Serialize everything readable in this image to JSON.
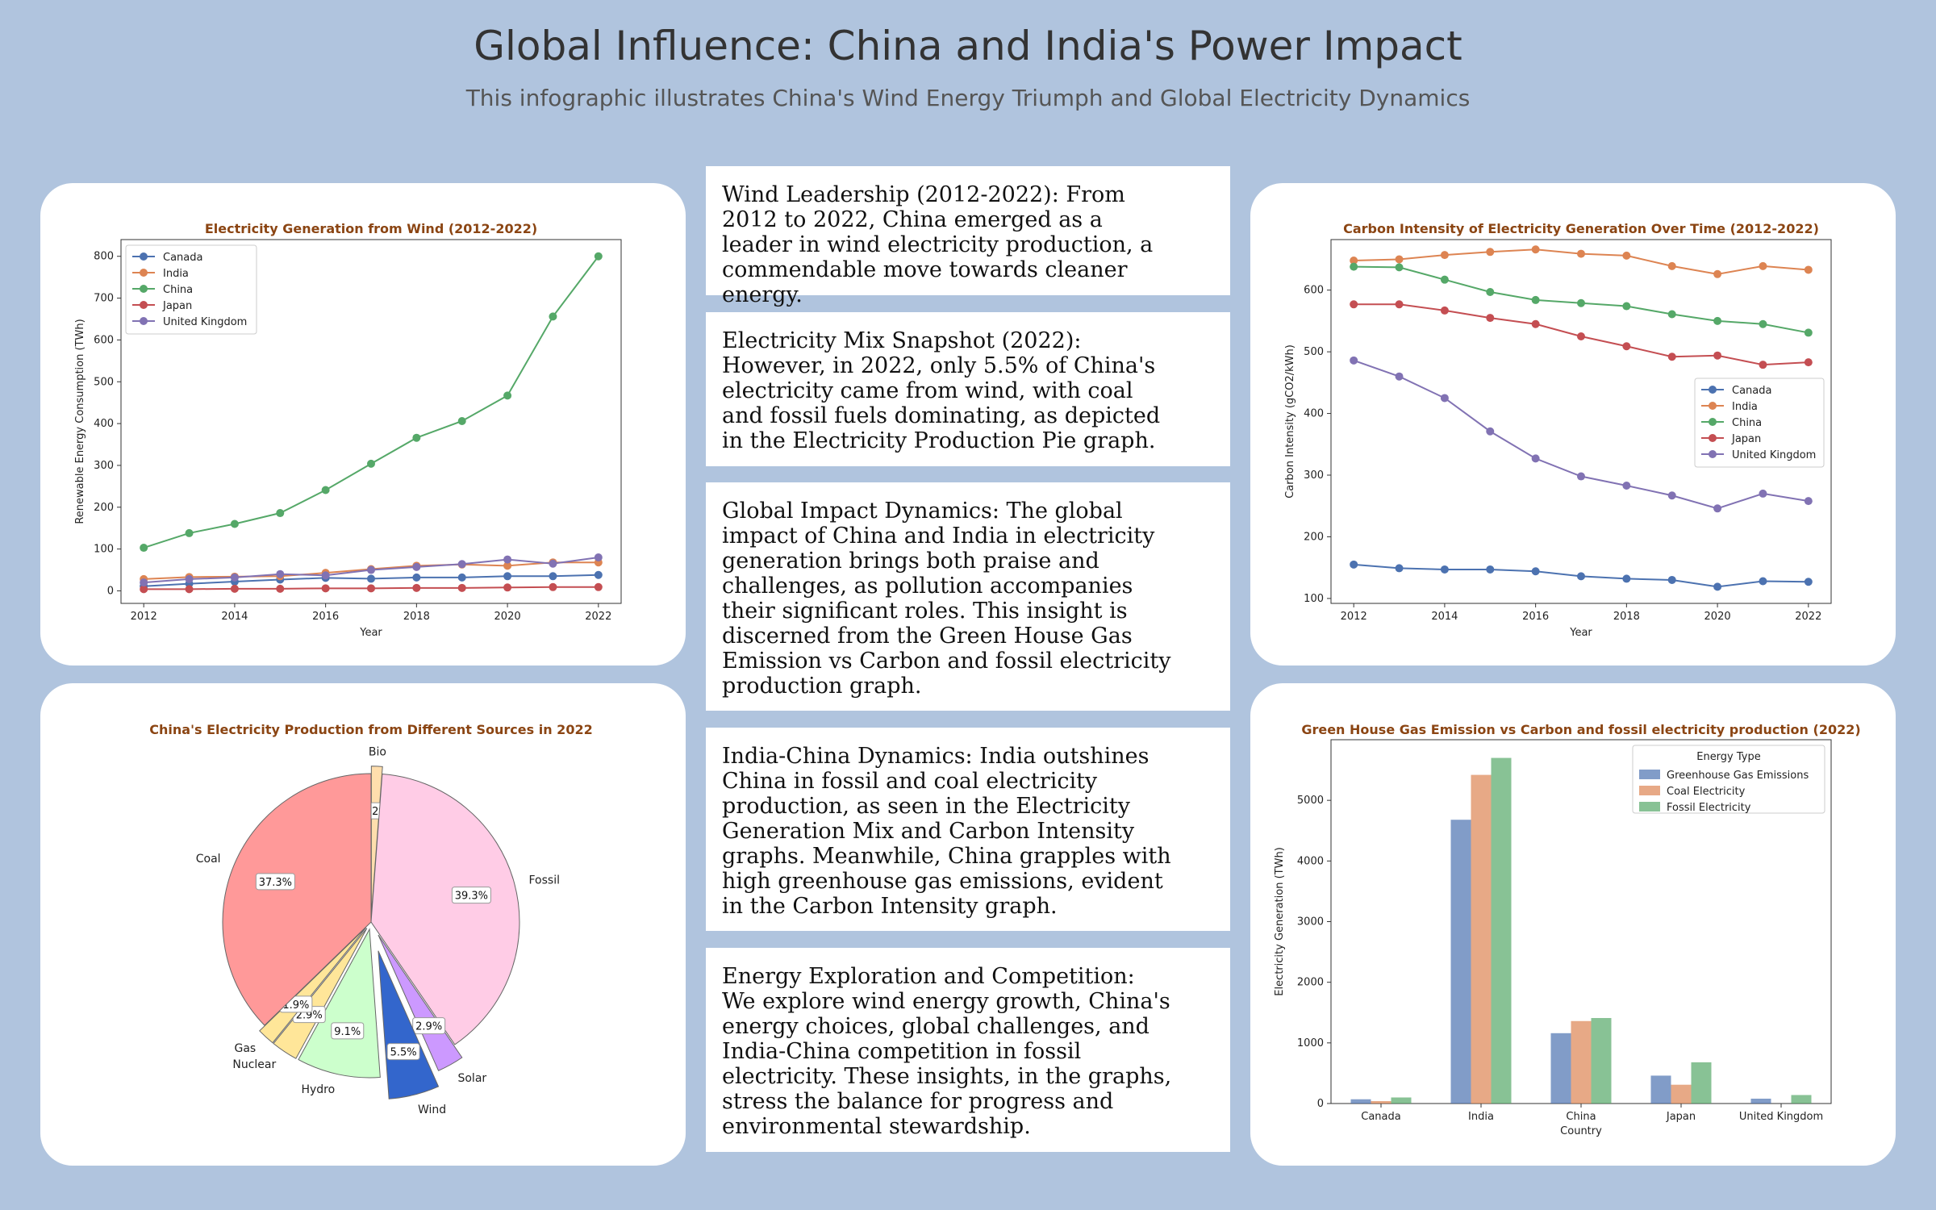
{
  "header": {
    "title": "Global Influence: China and India's Power Impact",
    "subtitle": "This infographic illustrates China's Wind Energy Triumph and Global Electricity Dynamics"
  },
  "insights": [
    "Wind Leadership (2012-2022): From 2012 to 2022, China emerged as a leader in wind electricity production, a commendable move towards cleaner energy.",
    "Electricity Mix Snapshot (2022): However, in 2022, only 5.5% of China's electricity came from wind, with coal and fossil fuels dominating, as depicted in the Electricity Production Pie graph.",
    "Global Impact Dynamics: The global impact of China and India in electricity generation brings both praise and challenges, as pollution accompanies their significant roles. This insight is discerned from the Green House Gas Emission vs Carbon and fossil electricity production graph.",
    "India-China Dynamics: India outshines China in fossil and coal electricity production, as seen in the Electricity Generation Mix and Carbon Intensity graphs. Meanwhile, China grapples with high greenhouse gas emissions, evident in the Carbon Intensity graph.",
    "Energy Exploration and Competition: We explore wind energy growth, China's energy choices, global challenges, and India-China competition in fossil electricity. These insights, in the graphs, stress the balance for progress and environmental stewardship."
  ],
  "colors": {
    "background": "#b0c4de",
    "title_text": "#8b4513",
    "Canada": "#4c72b0",
    "India": "#dd8452",
    "China": "#55a868",
    "Japan": "#c44e52",
    "United Kingdom": "#8172b3"
  },
  "chart_data": [
    {
      "type": "line",
      "title": "Electricity Generation from Wind (2012-2022)",
      "xlabel": "Year",
      "ylabel": "Renewable Energy Consumption (TWh)",
      "x": [
        2012,
        2013,
        2014,
        2015,
        2016,
        2017,
        2018,
        2019,
        2020,
        2021,
        2022
      ],
      "xticks": [
        2012,
        2014,
        2016,
        2018,
        2020,
        2022
      ],
      "yticks": [
        0,
        100,
        200,
        300,
        400,
        500,
        600,
        700,
        800
      ],
      "xlim": [
        2011.5,
        2022.5
      ],
      "ylim": [
        -30,
        840
      ],
      "legend": "top-left",
      "series": [
        {
          "name": "Canada",
          "color": "#4c72b0",
          "values": [
            11,
            17,
            22,
            27,
            31,
            29,
            32,
            32,
            35,
            35,
            38
          ]
        },
        {
          "name": "India",
          "color": "#dd8452",
          "values": [
            28,
            33,
            34,
            35,
            43,
            52,
            60,
            63,
            60,
            68,
            68
          ]
        },
        {
          "name": "China",
          "color": "#55a868",
          "values": [
            103,
            138,
            160,
            186,
            241,
            304,
            366,
            406,
            467,
            656,
            800
          ]
        },
        {
          "name": "Japan",
          "color": "#c44e52",
          "values": [
            4,
            4,
            5,
            5,
            6,
            6,
            7,
            7,
            8,
            9,
            9
          ]
        },
        {
          "name": "United Kingdom",
          "color": "#8172b3",
          "values": [
            20,
            28,
            32,
            40,
            37,
            50,
            57,
            64,
            75,
            65,
            80
          ]
        }
      ]
    },
    {
      "type": "line",
      "title": "Carbon Intensity of Electricity Generation Over Time (2012-2022)",
      "xlabel": "Year",
      "ylabel": "Carbon Intensity (gCO2/kWh)",
      "x": [
        2012,
        2013,
        2014,
        2015,
        2016,
        2017,
        2018,
        2019,
        2020,
        2021,
        2022
      ],
      "xticks": [
        2012,
        2014,
        2016,
        2018,
        2020,
        2022
      ],
      "yticks": [
        100,
        200,
        300,
        400,
        500,
        600
      ],
      "xlim": [
        2011.5,
        2022.5
      ],
      "ylim": [
        92,
        682
      ],
      "legend": "center-right",
      "series": [
        {
          "name": "Canada",
          "color": "#4c72b0",
          "values": [
            155,
            149,
            147,
            147,
            144,
            136,
            132,
            130,
            119,
            128,
            127
          ]
        },
        {
          "name": "India",
          "color": "#dd8452",
          "values": [
            648,
            650,
            657,
            662,
            666,
            659,
            656,
            639,
            626,
            639,
            633
          ]
        },
        {
          "name": "China",
          "color": "#55a868",
          "values": [
            638,
            637,
            617,
            597,
            584,
            579,
            574,
            561,
            550,
            545,
            531
          ]
        },
        {
          "name": "Japan",
          "color": "#c44e52",
          "values": [
            577,
            577,
            567,
            555,
            545,
            525,
            509,
            492,
            494,
            479,
            483
          ]
        },
        {
          "name": "United Kingdom",
          "color": "#8172b3",
          "values": [
            486,
            460,
            425,
            371,
            327,
            298,
            283,
            267,
            246,
            270,
            258
          ]
        }
      ]
    },
    {
      "type": "pie",
      "title": "China's Electricity Production from Different Sources in 2022",
      "slices": [
        {
          "label": "Bio",
          "value": 1.2,
          "pct_label": "1.2%",
          "color": "#ffdead",
          "explode": 0.05
        },
        {
          "label": "Fossil",
          "value": 39.3,
          "pct_label": "39.3%",
          "color": "#ffcce6",
          "explode": 0
        },
        {
          "label": "Solar",
          "value": 2.9,
          "pct_label": "2.9%",
          "color": "#cc99ff",
          "explode": 0.1
        },
        {
          "label": "Wind",
          "value": 5.5,
          "pct_label": "5.5%",
          "color": "#3366cc",
          "explode": 0.2
        },
        {
          "label": "Hydro",
          "value": 9.1,
          "pct_label": "9.1%",
          "color": "#ccffcc",
          "explode": 0.05
        },
        {
          "label": "Nuclear",
          "value": 2.9,
          "pct_label": "2.9%",
          "color": "#ffe699",
          "explode": 0.05
        },
        {
          "label": "Gas",
          "value": 1.9,
          "pct_label": "1.9%",
          "color": "#ffe699",
          "explode": 0.05
        },
        {
          "label": "Coal",
          "value": 37.3,
          "pct_label": "37.3%",
          "color": "#ff9999",
          "explode": 0
        }
      ]
    },
    {
      "type": "bar",
      "title": "Green House Gas Emission vs Carbon and fossil electricity production (2022)",
      "xlabel": "Country",
      "ylabel": "Electricity Generation (TWh)",
      "categories": [
        "Canada",
        "India",
        "China",
        "Japan",
        "United Kingdom"
      ],
      "yticks": [
        0,
        1000,
        2000,
        3000,
        4000,
        5000
      ],
      "ylim": [
        0,
        6000
      ],
      "legend_title": "Energy Type",
      "legend": "top-right",
      "series": [
        {
          "name": "Greenhouse Gas Emissions",
          "color": "#4c72b0",
          "values": [
            70,
            4680,
            1160,
            460,
            80
          ]
        },
        {
          "name": "Coal Electricity",
          "color": "#dd8452",
          "values": [
            40,
            5420,
            1360,
            310,
            0
          ]
        },
        {
          "name": "Fossil Electricity",
          "color": "#55a868",
          "values": [
            100,
            5700,
            1410,
            680,
            140
          ]
        }
      ]
    }
  ]
}
